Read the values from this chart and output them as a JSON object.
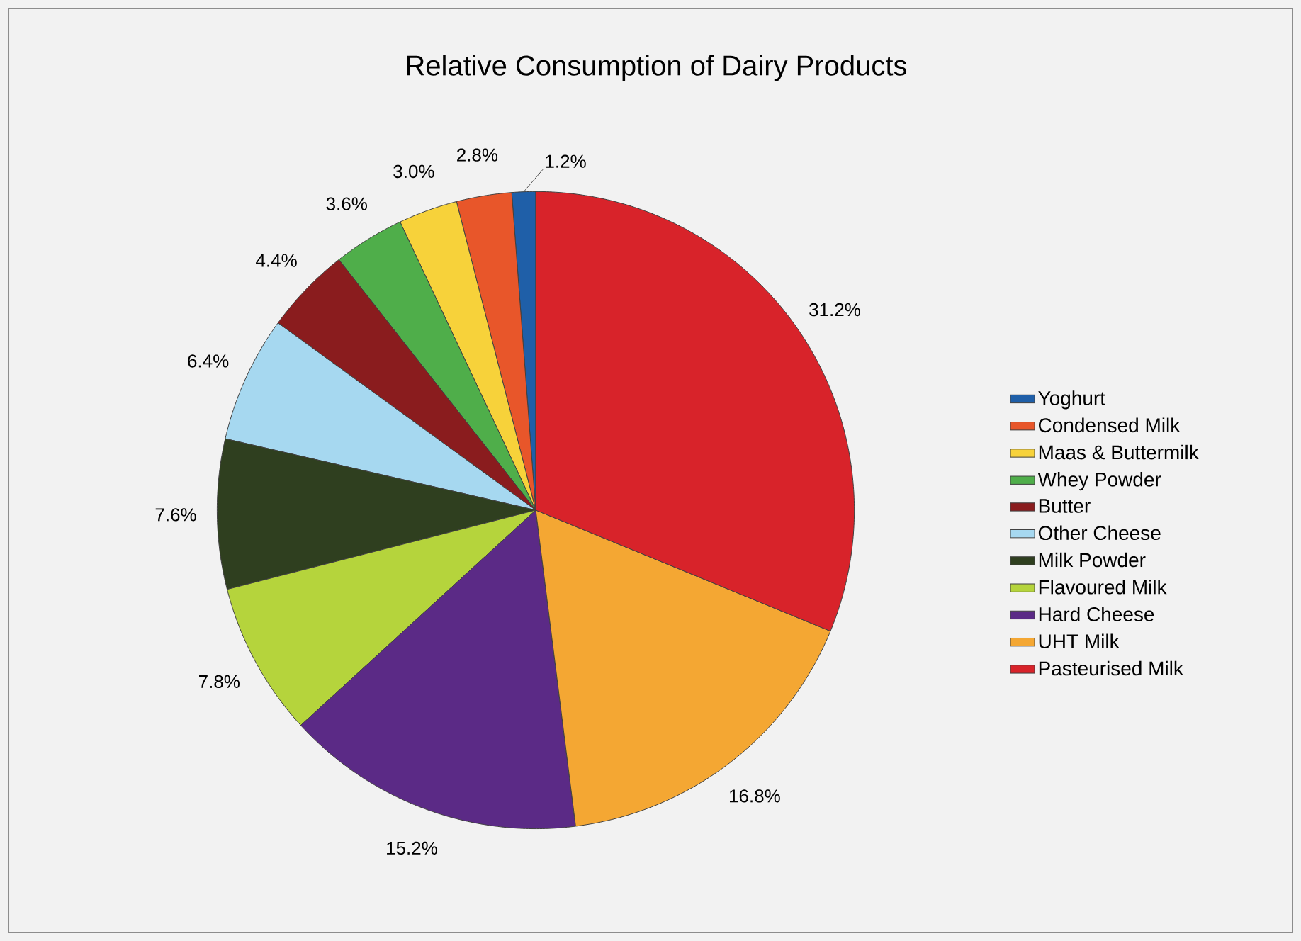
{
  "chart_data": {
    "type": "pie",
    "title": "Relative Consumption of Dairy Products",
    "categories": [
      "Yoghurt",
      "Condensed Milk",
      "Maas & Buttermilk",
      "Whey Powder",
      "Butter",
      "Other Cheese",
      "Milk Powder",
      "Flavoured Milk",
      "Hard Cheese",
      "UHT Milk",
      "Pasteurised Milk"
    ],
    "values": [
      1.2,
      2.8,
      3.0,
      3.6,
      4.4,
      6.4,
      7.6,
      7.8,
      15.2,
      16.8,
      31.2
    ],
    "value_labels": [
      "1.2%",
      "2.8%",
      "3.0%",
      "3.6%",
      "4.4%",
      "6.4%",
      "7.6%",
      "7.8%",
      "15.2%",
      "16.8%",
      "31.2%"
    ],
    "colors": [
      "#1f5fa8",
      "#e8562a",
      "#f7d23a",
      "#4fae4a",
      "#8a1c1e",
      "#a6d8f0",
      "#2f3f1f",
      "#b5d43c",
      "#5b2a86",
      "#f4a733",
      "#d8232a"
    ],
    "legend": "right"
  }
}
